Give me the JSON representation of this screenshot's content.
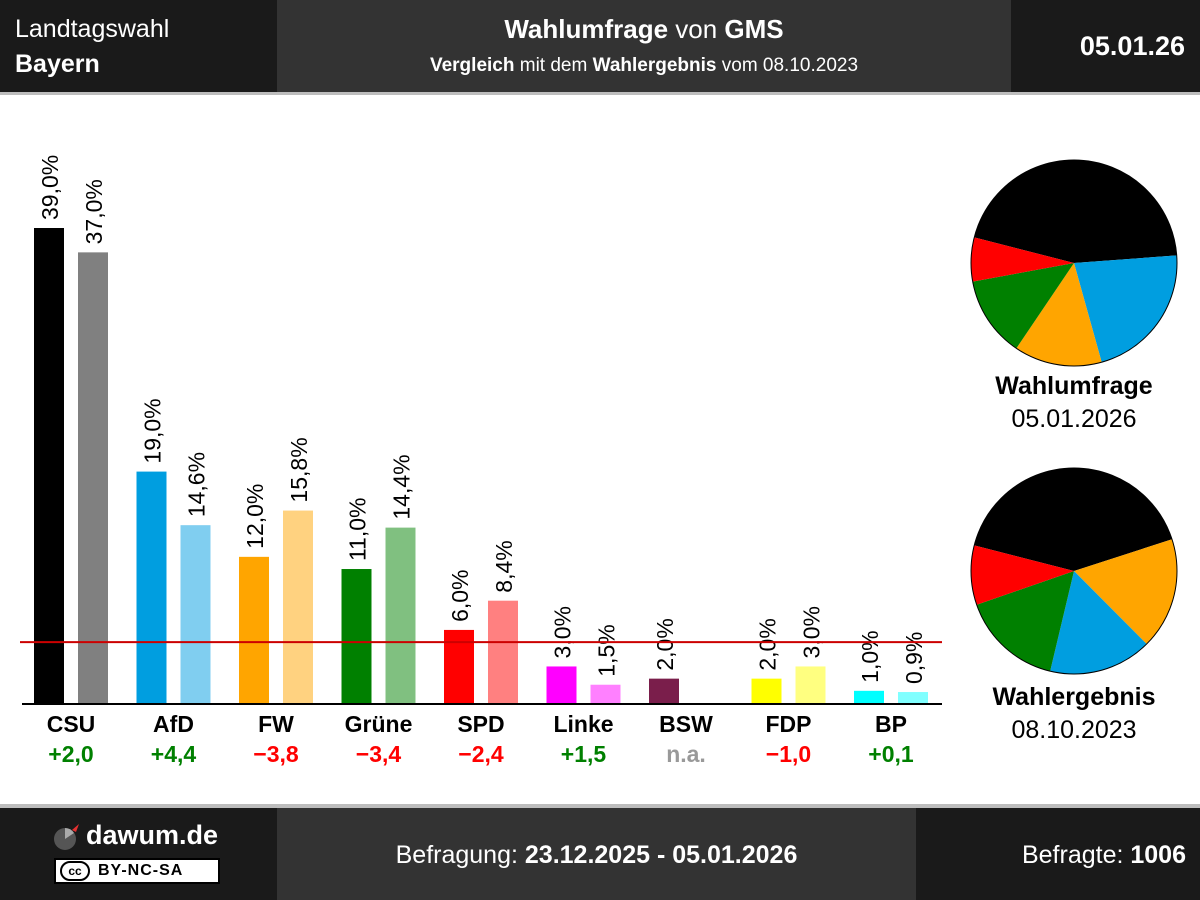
{
  "header": {
    "region_line1": "Landtagswahl",
    "region_line2": "Bayern",
    "title_bold1": "Wahlumfrage",
    "title_mid": " von ",
    "title_bold2": "GMS",
    "sub_bold1": "Vergleich",
    "sub_mid": " mit dem ",
    "sub_bold2": "Wahlergebnis",
    "sub_end": " vom 08.10.2023",
    "date": "05.01.26"
  },
  "footer": {
    "logo_text": "dawum.de",
    "license_cc": "cc",
    "license": "BY-NC-SA",
    "survey_label": "Befragung: ",
    "survey_range": "23.12.2025 - 05.01.2026",
    "respondents_label": "Befragte: ",
    "respondents_value": "1006"
  },
  "pies": {
    "poll_title": "Wahlumfrage",
    "poll_date": "05.01.2026",
    "result_title": "Wahlergebnis",
    "result_date": "08.10.2023"
  },
  "chart_data": {
    "type": "bar",
    "categories": [
      "CSU",
      "AfD",
      "FW",
      "Grüne",
      "SPD",
      "Linke",
      "BSW",
      "FDP",
      "BP"
    ],
    "series": [
      {
        "name": "Wahlumfrage",
        "values": [
          39.0,
          19.0,
          12.0,
          11.0,
          6.0,
          3.0,
          2.0,
          2.0,
          1.0
        ],
        "labels": [
          "39,0%",
          "19,0%",
          "12,0%",
          "11,0%",
          "6,0%",
          "3,0%",
          "2,0%",
          "2,0%",
          "1,0%"
        ]
      },
      {
        "name": "Wahlergebnis",
        "values": [
          37.0,
          14.6,
          15.8,
          14.4,
          8.4,
          1.5,
          null,
          3.0,
          0.9
        ],
        "labels": [
          "37,0%",
          "14,6%",
          "15,8%",
          "14,4%",
          "8,4%",
          "1,5%",
          "",
          "3,0%",
          "0,9%"
        ]
      }
    ],
    "changes": [
      "+2,0",
      "+4,4",
      "−3,8",
      "−3,4",
      "−2,4",
      "+1,5",
      "n.a.",
      "−1,0",
      "+0,1"
    ],
    "change_colors": [
      "#008000",
      "#008000",
      "#ff0000",
      "#ff0000",
      "#ff0000",
      "#008000",
      "#999999",
      "#ff0000",
      "#008000"
    ],
    "colors_poll": [
      "#000000",
      "#009ee0",
      "#ffa500",
      "#008000",
      "#ff0000",
      "#ff00ff",
      "#7a1e4b",
      "#ffff00",
      "#00ffff"
    ],
    "colors_result": [
      "#808080",
      "#80cef0",
      "#ffd280",
      "#80c080",
      "#ff8080",
      "#ff80ff",
      "#bc8ea5",
      "#ffff80",
      "#80ffff"
    ],
    "threshold": 5,
    "threshold_color": "#cc0000",
    "ylim": [
      0,
      40
    ],
    "pie_poll": {
      "slices": [
        {
          "party": "CSU",
          "value": 39.0,
          "color": "#000000"
        },
        {
          "party": "AfD",
          "value": 19.0,
          "color": "#009ee0"
        },
        {
          "party": "FW",
          "value": 12.0,
          "color": "#ffa500"
        },
        {
          "party": "Grüne",
          "value": 11.0,
          "color": "#008000"
        },
        {
          "party": "SPD",
          "value": 6.0,
          "color": "#ff0000"
        }
      ]
    },
    "pie_result": {
      "slices": [
        {
          "party": "CSU",
          "value": 37.0,
          "color": "#000000"
        },
        {
          "party": "FW",
          "value": 15.8,
          "color": "#ffa500"
        },
        {
          "party": "AfD",
          "value": 14.6,
          "color": "#009ee0"
        },
        {
          "party": "Grüne",
          "value": 14.4,
          "color": "#008000"
        },
        {
          "party": "SPD",
          "value": 8.4,
          "color": "#ff0000"
        }
      ]
    }
  }
}
